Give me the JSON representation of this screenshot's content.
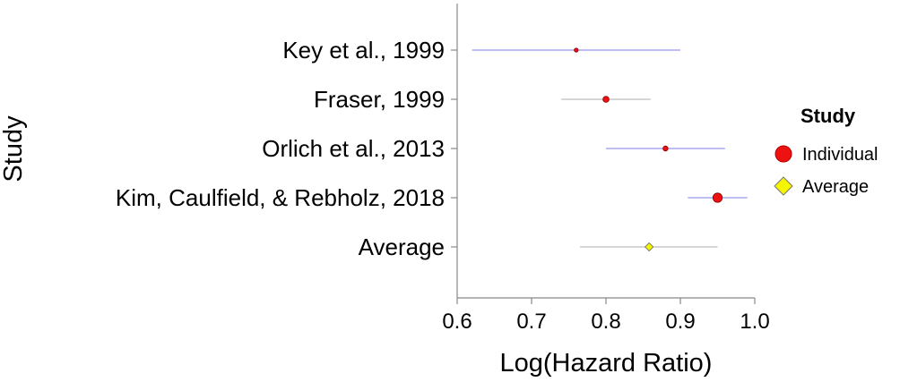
{
  "chart_data": {
    "type": "forest",
    "xlabel": "Log(Hazard Ratio)",
    "ylabel": "Study",
    "xlim": [
      0.6,
      1.0
    ],
    "xticks": [
      "0.6",
      "0.7",
      "0.8",
      "0.9",
      "1.0"
    ],
    "grid": false,
    "studies": [
      {
        "name": "Key et al., 1999",
        "estimate": 0.76,
        "lower": 0.62,
        "upper": 0.9,
        "group": "Individual",
        "ci_color": "#a9a9ee"
      },
      {
        "name": "Fraser, 1999",
        "estimate": 0.8,
        "lower": 0.74,
        "upper": 0.86,
        "group": "Individual",
        "ci_color": "#c8c8c8"
      },
      {
        "name": "Orlich et al., 2013",
        "estimate": 0.88,
        "lower": 0.8,
        "upper": 0.96,
        "group": "Individual",
        "ci_color": "#a9a9ee"
      },
      {
        "name": "Kim, Caulfield, & Rebholz, 2018",
        "estimate": 0.95,
        "lower": 0.91,
        "upper": 0.99,
        "group": "Individual",
        "ci_color": "#a9a9ee"
      },
      {
        "name": "Average",
        "estimate": 0.858,
        "lower": 0.765,
        "upper": 0.95,
        "group": "Average",
        "ci_color": "#c8c8c8"
      }
    ],
    "legend": {
      "title": "Study",
      "position": "right",
      "entries": [
        {
          "label": "Individual",
          "marker": "circle",
          "color": "#ee1111"
        },
        {
          "label": "Average",
          "marker": "diamond",
          "color": "#f5f500"
        }
      ]
    }
  }
}
